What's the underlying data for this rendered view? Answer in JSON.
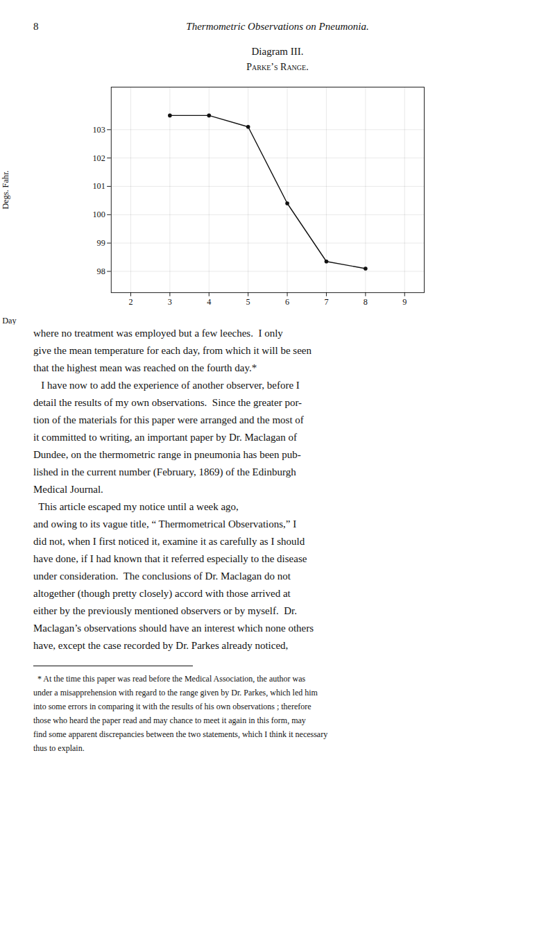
{
  "page_number": "8",
  "header": "Thermometric Observations on Pneumonia.",
  "chart_data": {
    "type": "line",
    "title": "Diagram III.",
    "subtitle": "Parke’s Range.",
    "x_label": "Day",
    "y_label": "Degs. Fahr.",
    "x": [
      3,
      4,
      5,
      6,
      7,
      8
    ],
    "values": [
      103.5,
      103.5,
      103.1,
      100.4,
      98.35,
      98.1
    ],
    "xlim": [
      1.5,
      9.5
    ],
    "xticks": [
      2,
      3,
      4,
      5,
      6,
      7,
      8,
      9
    ],
    "ylim": [
      97.25,
      104.5
    ],
    "yticks": [
      98,
      99,
      100,
      101,
      102,
      103
    ],
    "grid": true,
    "color": "#111111",
    "marker": "circle"
  },
  "body": [
    "where no treatment was employed but a few leeches.  I only",
    "give the mean temperature for each day, from which it will be seen",
    "that the highest mean was reached on the fourth day.*",
    "   I have now to add the experience of another observer, before I",
    "detail the results of my own observations.  Since the greater por-",
    "tion of the materials for this paper were arranged and the most of",
    "it committed to writing, an important paper by Dr. Maclagan of",
    "Dundee, on the thermometric range in pneumonia has been pub-",
    "lished in the current number (February, 1869) of the Edinburgh",
    "Medical Journal.",
    "  This article escaped my notice until a week ago,",
    "and owing to its vague title, “ Thermometrical Observations,” I",
    "did not, when I first noticed it, examine it as carefully as I should",
    "have done, if I had known that it referred especially to the disease",
    "under consideration.  The conclusions of Dr. Maclagan do not",
    "altogether (though pretty closely) accord with those arrived at",
    "either by the previously mentioned observers or by myself.  Dr.",
    "Maclagan’s observations should have an interest which none others",
    "have, except the case recorded by Dr. Parkes already noticed,"
  ],
  "footnote": [
    "  * At the time this paper was read before the Medical Association, the author was",
    "under a misapprehension with regard to the range given by Dr. Parkes, which led him",
    "into some errors in comparing it with the results of his own observations ; therefore",
    "those who heard the paper read and may chance to meet it again in this form, may",
    "find some apparent discrepancies between the two statements, which I think it necessary",
    "thus to explain."
  ]
}
